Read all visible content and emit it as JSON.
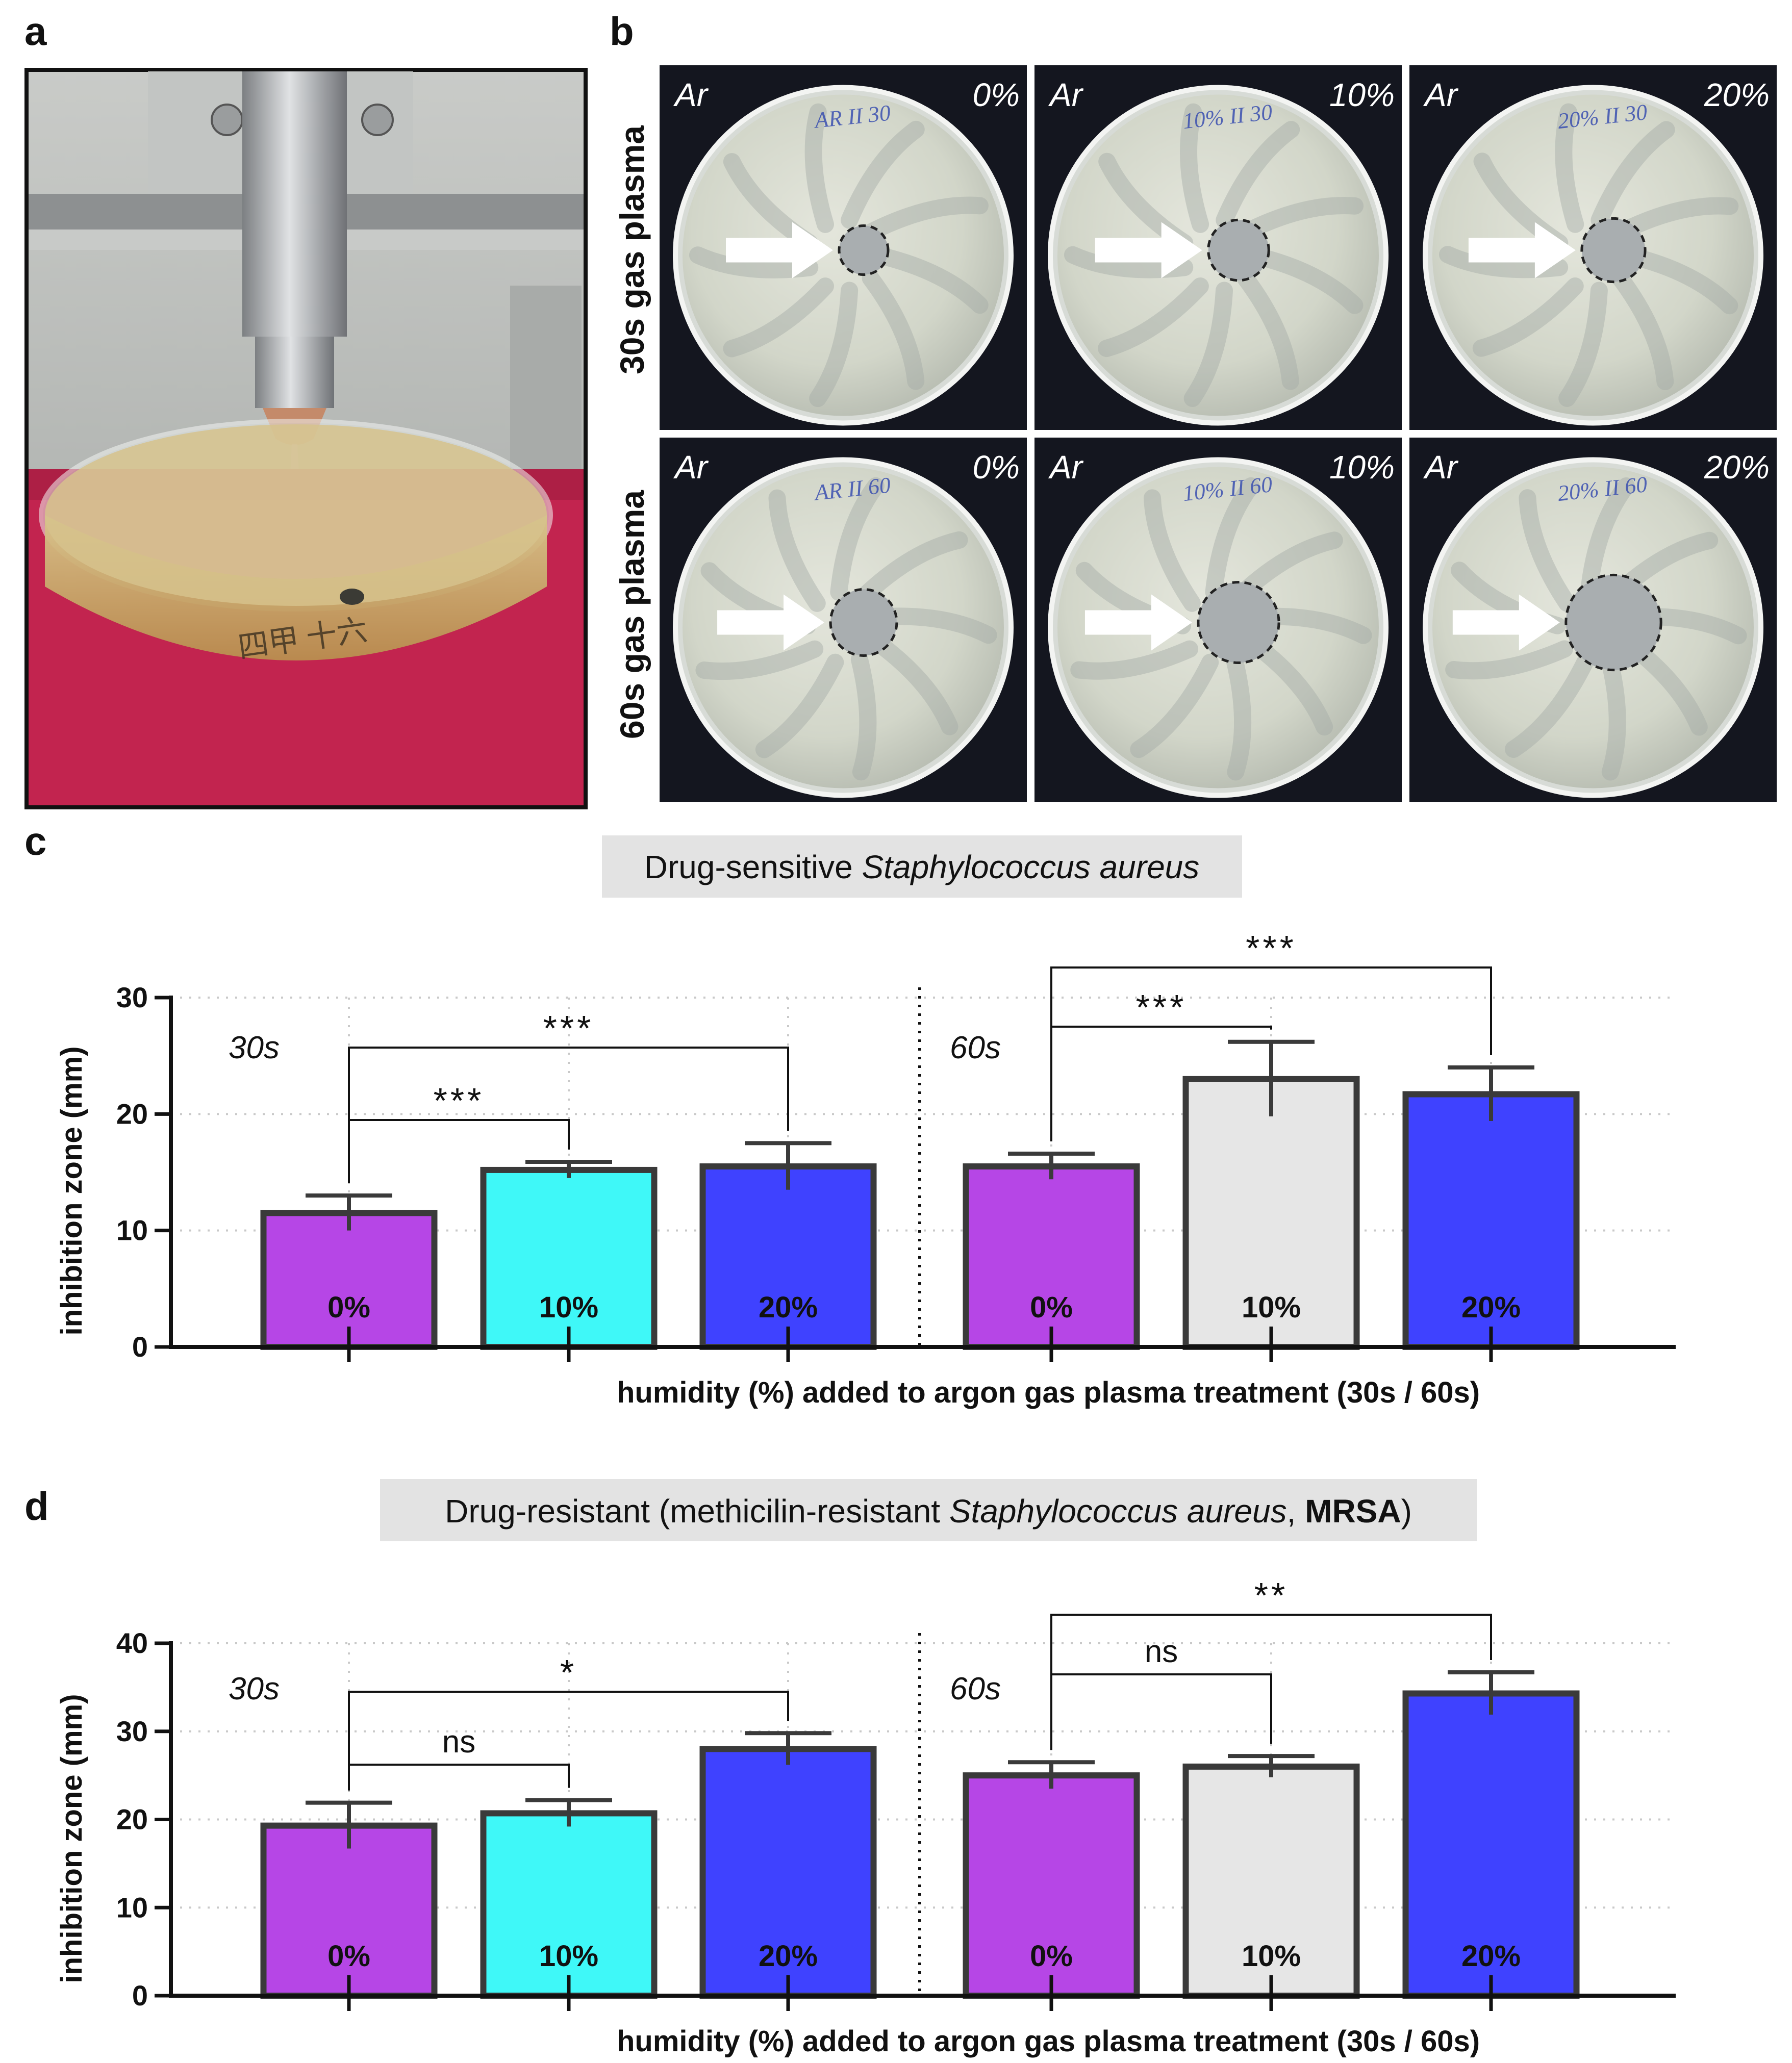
{
  "panels": {
    "a": "a",
    "b": "b",
    "c": "c",
    "d": "d"
  },
  "photo_grid": {
    "row_labels": [
      "30s gas plasma",
      "60s gas plasma"
    ],
    "gas_label": "Ar",
    "columns": [
      "0%",
      "10%",
      "20%"
    ],
    "plate_writing": [
      [
        "AR II 30",
        "10% II 30",
        "20% II 30"
      ],
      [
        "AR II 60",
        "10% II 60",
        "20% II 60"
      ]
    ]
  },
  "colors": {
    "humidity_0": "#b646e6",
    "humidity_10_30s": "#3ff8f8",
    "humidity_10_60s": "#e6e6e6",
    "humidity_20": "#3f42ff",
    "bar_border": "#3a3a3a",
    "title_box": "#e3e3e3",
    "photo_bg": "#14161f"
  },
  "chart_data": [
    {
      "id": "c",
      "type": "bar",
      "title_plain": "Drug-sensitive ",
      "title_italic": "Staphylococcus aureus",
      "xlabel": "humidity (%) added to argon gas plasma treatment (30s / 60s)",
      "ylabel": "inhibition zone (mm)",
      "ylim": [
        0,
        30
      ],
      "yticks": [
        "0",
        "10",
        "20",
        "30"
      ],
      "groups": [
        "30s",
        "60s"
      ],
      "categories": [
        "0%",
        "10%",
        "20%",
        "0%",
        "10%",
        "20%"
      ],
      "series": [
        {
          "name": "mean",
          "values": [
            11.5,
            15.2,
            15.5,
            15.5,
            23.0,
            21.7
          ]
        },
        {
          "name": "error",
          "values": [
            1.5,
            0.7,
            2.0,
            1.1,
            3.2,
            2.3
          ]
        }
      ],
      "bar_colors": [
        "#b646e6",
        "#3ff8f8",
        "#3f42ff",
        "#b646e6",
        "#e6e6e6",
        "#3f42ff"
      ],
      "significance": [
        {
          "from": 0,
          "to": 1,
          "label": "***"
        },
        {
          "from": 0,
          "to": 2,
          "label": "***"
        },
        {
          "from": 3,
          "to": 4,
          "label": "***"
        },
        {
          "from": 3,
          "to": 5,
          "label": "***"
        }
      ]
    },
    {
      "id": "d",
      "type": "bar",
      "title_plain": "Drug-resistant (methicilin-resistant ",
      "title_italic": "Staphylococcus aureus",
      "title_after": ", ",
      "title_bold": "MRSA",
      "title_end": ")",
      "xlabel": "humidity (%) added to argon gas plasma treatment (30s / 60s)",
      "ylabel": "inhibition zone (mm)",
      "ylim": [
        0,
        40
      ],
      "yticks": [
        "0",
        "10",
        "20",
        "30",
        "40"
      ],
      "groups": [
        "30s",
        "60s"
      ],
      "categories": [
        "0%",
        "10%",
        "20%",
        "0%",
        "10%",
        "20%"
      ],
      "series": [
        {
          "name": "mean",
          "values": [
            19.3,
            20.7,
            28.0,
            25.0,
            26.0,
            34.3
          ]
        },
        {
          "name": "error",
          "values": [
            2.6,
            1.5,
            1.8,
            1.5,
            1.2,
            2.4
          ]
        }
      ],
      "bar_colors": [
        "#b646e6",
        "#3ff8f8",
        "#3f42ff",
        "#b646e6",
        "#e6e6e6",
        "#3f42ff"
      ],
      "significance": [
        {
          "from": 0,
          "to": 1,
          "label": "ns"
        },
        {
          "from": 0,
          "to": 2,
          "label": "*"
        },
        {
          "from": 3,
          "to": 4,
          "label": "ns"
        },
        {
          "from": 3,
          "to": 5,
          "label": "**"
        }
      ]
    }
  ]
}
